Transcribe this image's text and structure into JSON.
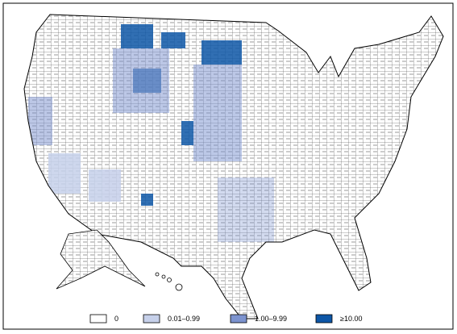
{
  "legend": [
    {
      "label": "0",
      "color": "#ffffff"
    },
    {
      "label": "0.01–0.99",
      "color": "#c6d0ea"
    },
    {
      "label": "1.00–9.99",
      "color": "#7c93cf"
    },
    {
      "label": "≥10.00",
      "color": "#0d56a6"
    }
  ]
}
